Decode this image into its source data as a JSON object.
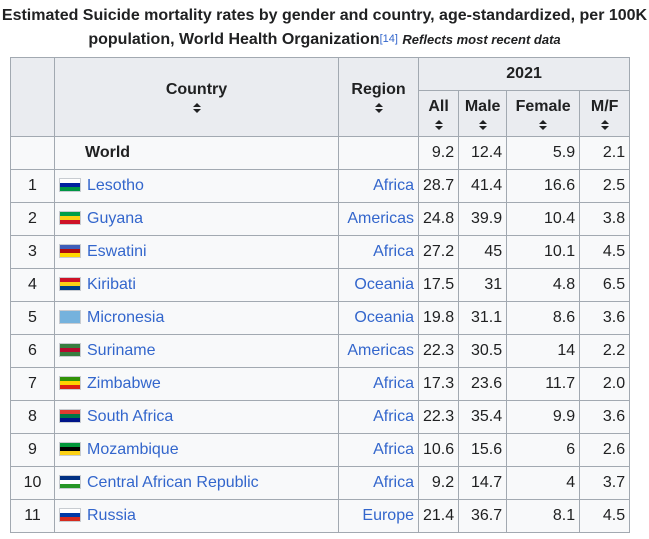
{
  "caption": {
    "title": "Estimated Suicide mortality rates by gender and country, age-standardized, per 100K population, World Health Organization",
    "ref": "[14]",
    "note": "Reflects most recent data"
  },
  "headers": {
    "country": "Country",
    "region": "Region",
    "year": "2021",
    "all": "All",
    "male": "Male",
    "female": "Female",
    "mf": "M/F"
  },
  "world": {
    "country": "World",
    "region": "",
    "all": "9.2",
    "male": "12.4",
    "female": "5.9",
    "mf": "2.1"
  },
  "rows": [
    {
      "rank": "1",
      "country": "Lesotho",
      "region": "Africa",
      "all": "28.7",
      "male": "41.4",
      "female": "16.6",
      "mf": "2.5",
      "flag": [
        "#ffffff",
        "#00209f",
        "#009543"
      ]
    },
    {
      "rank": "2",
      "country": "Guyana",
      "region": "Americas",
      "all": "24.8",
      "male": "39.9",
      "female": "10.4",
      "mf": "3.8",
      "flag": [
        "#009e49",
        "#fcd116",
        "#ce1126"
      ]
    },
    {
      "rank": "3",
      "country": "Eswatini",
      "region": "Africa",
      "all": "27.2",
      "male": "45",
      "female": "10.1",
      "mf": "4.5",
      "flag": [
        "#3e5eb9",
        "#b10c0c",
        "#ffd900"
      ]
    },
    {
      "rank": "4",
      "country": "Kiribati",
      "region": "Oceania",
      "all": "17.5",
      "male": "31",
      "female": "4.8",
      "mf": "6.5",
      "flag": [
        "#ce1126",
        "#fcd116",
        "#003f87"
      ]
    },
    {
      "rank": "5",
      "country": "Micronesia",
      "region": "Oceania",
      "all": "19.8",
      "male": "31.1",
      "female": "8.6",
      "mf": "3.6",
      "flag": [
        "#75b2dd",
        "#75b2dd",
        "#75b2dd"
      ]
    },
    {
      "rank": "6",
      "country": "Suriname",
      "region": "Americas",
      "all": "22.3",
      "male": "30.5",
      "female": "14",
      "mf": "2.2",
      "flag": [
        "#377e3f",
        "#b40a2d",
        "#377e3f"
      ]
    },
    {
      "rank": "7",
      "country": "Zimbabwe",
      "region": "Africa",
      "all": "17.3",
      "male": "23.6",
      "female": "11.7",
      "mf": "2.0",
      "flag": [
        "#319208",
        "#ffd200",
        "#de2010"
      ]
    },
    {
      "rank": "8",
      "country": "South Africa",
      "region": "Africa",
      "all": "22.3",
      "male": "35.4",
      "female": "9.9",
      "mf": "3.6",
      "flag": [
        "#e03c31",
        "#007749",
        "#001489"
      ]
    },
    {
      "rank": "9",
      "country": "Mozambique",
      "region": "Africa",
      "all": "10.6",
      "male": "15.6",
      "female": "6",
      "mf": "2.6",
      "flag": [
        "#009739",
        "#000000",
        "#fcd116"
      ]
    },
    {
      "rank": "10",
      "country": "Central African Republic",
      "region": "Africa",
      "all": "9.2",
      "male": "14.7",
      "female": "4",
      "mf": "3.7",
      "flag": [
        "#003082",
        "#ffffff",
        "#289728"
      ]
    },
    {
      "rank": "11",
      "country": "Russia",
      "region": "Europe",
      "all": "21.4",
      "male": "36.7",
      "female": "8.1",
      "mf": "4.5",
      "flag": [
        "#ffffff",
        "#0039a6",
        "#d52b1e"
      ]
    }
  ]
}
